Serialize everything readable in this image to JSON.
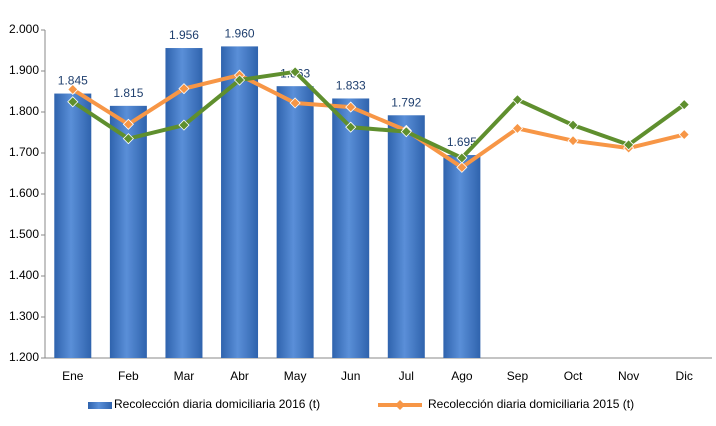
{
  "chart_data": {
    "type": "bar_line",
    "categories": [
      "Ene",
      "Feb",
      "Mar",
      "Abr",
      "May",
      "Jun",
      "Jul",
      "Ago",
      "Sep",
      "Oct",
      "Nov",
      "Dic"
    ],
    "series": [
      {
        "name": "Recolección diaria domiciliaria 2016 (t)",
        "type": "bar",
        "color": "#3f77c4",
        "values": [
          1845,
          1815,
          1956,
          1960,
          1863,
          1833,
          1792,
          1695,
          null,
          null,
          null,
          null
        ],
        "value_labels": [
          "1.845",
          "1.815",
          "1.956",
          "1.960",
          "1.863",
          "1.833",
          "1.792",
          "1.695",
          null,
          null,
          null,
          null
        ]
      },
      {
        "name": "Recolección diaria domiciliaria 2015 (t)",
        "type": "line",
        "color": "#f79646",
        "values": [
          1855,
          1770,
          1857,
          1890,
          1822,
          1812,
          1755,
          1665,
          1760,
          1730,
          1712,
          1745
        ]
      },
      {
        "type": "line",
        "color": "#5f8f2e",
        "values": [
          1825,
          1735,
          1768,
          1878,
          1898,
          1763,
          1752,
          1688,
          1830,
          1768,
          1720,
          1818
        ]
      }
    ],
    "ylim": [
      1200,
      2000
    ],
    "yticks": [
      {
        "value": 1200,
        "label": "1.200"
      },
      {
        "value": 1300,
        "label": "1.300"
      },
      {
        "value": 1400,
        "label": "1.400"
      },
      {
        "value": 1500,
        "label": "1.500"
      },
      {
        "value": 1600,
        "label": "1.600"
      },
      {
        "value": 1700,
        "label": "1.700"
      },
      {
        "value": 1800,
        "label": "1.800"
      },
      {
        "value": 1900,
        "label": "1.900"
      },
      {
        "value": 2000,
        "label": "2.000"
      }
    ],
    "grid": false,
    "legend": "bottom"
  }
}
